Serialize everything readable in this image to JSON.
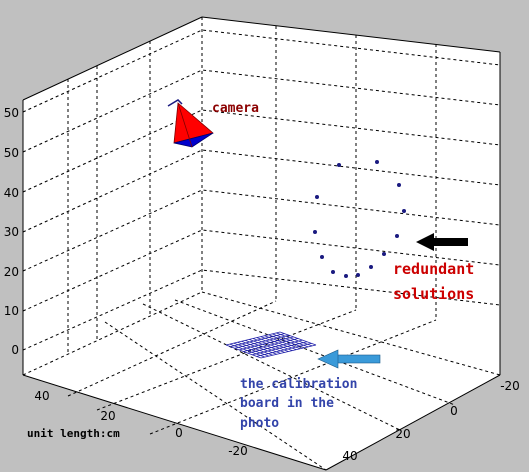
{
  "chart_data": {
    "type": "scatter",
    "title": "",
    "colors": {
      "figure_bg": "#c0c0c0",
      "plot_bg": "#ffffff",
      "camera_body": "#ff0000",
      "camera_base": "#0000cc",
      "points": "#1a1a80",
      "board": "#2020aa",
      "black_arrow": "#000000",
      "blue_arrow": "#3a9ad9",
      "label_red": "#cc0000",
      "label_blue": "#3344aa"
    },
    "axes": {
      "z_ticks": [
        "50",
        "50",
        "40",
        "30",
        "20",
        "10",
        "0"
      ],
      "x_ticks": [
        "40",
        "20",
        "0",
        "-20"
      ],
      "y_ticks": [
        "-20",
        "0",
        "20",
        "40"
      ]
    },
    "unit_label": "unit length:cm",
    "annotations": {
      "camera": "camera",
      "redundant": [
        "redundant",
        "solutions"
      ],
      "board": [
        "the calibration",
        "board in the",
        "photo"
      ]
    },
    "series": [
      {
        "marker": "dot",
        "points": [
          [
            339,
            165
          ],
          [
            377,
            162
          ],
          [
            399,
            185
          ],
          [
            317,
            197
          ],
          [
            404,
            211
          ],
          [
            315,
            232
          ],
          [
            397,
            236
          ],
          [
            322,
            257
          ],
          [
            384,
            254
          ],
          [
            333,
            272
          ],
          [
            346,
            276
          ],
          [
            358,
            275
          ],
          [
            371,
            267
          ]
        ]
      }
    ]
  }
}
